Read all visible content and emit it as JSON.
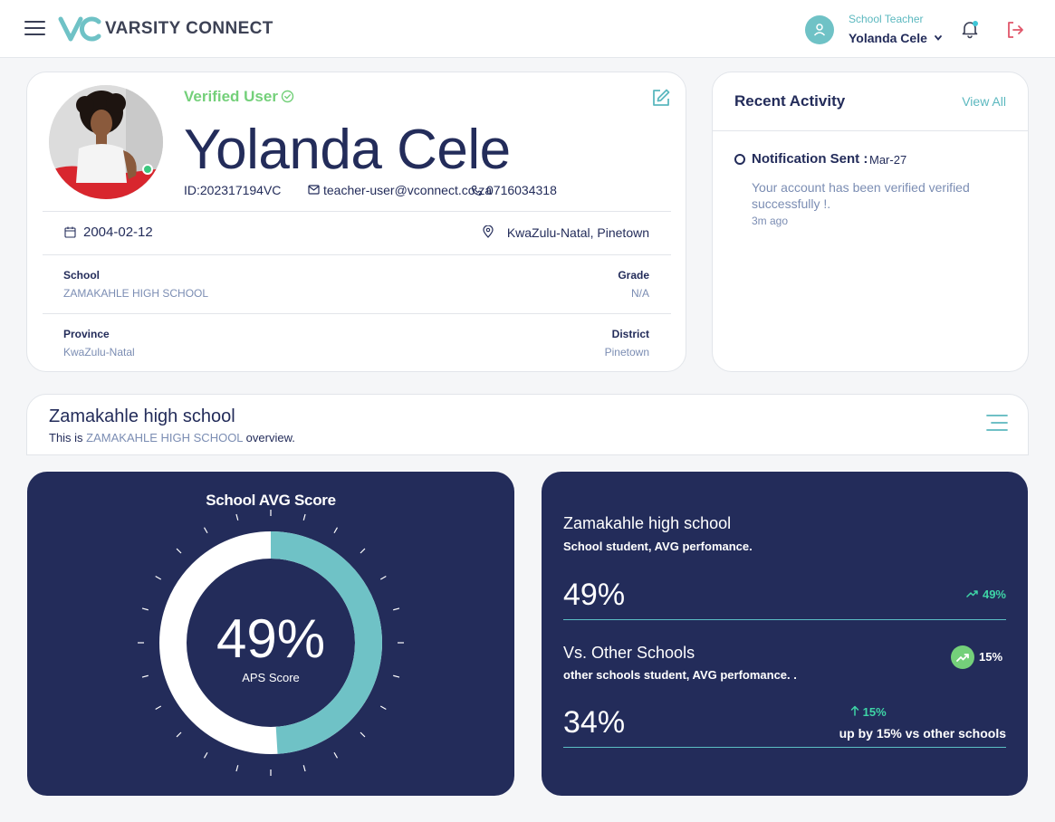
{
  "header": {
    "brand": "VARSITY CONNECT",
    "user_role": "School Teacher",
    "user_name": "Yolanda Cele"
  },
  "profile": {
    "verified_label": "Verified User",
    "name": "Yolanda Cele",
    "id": "ID:202317194VC",
    "email": "teacher-user@vconnect.co.za",
    "phone": "0716034318",
    "dob": "2004-02-12",
    "location": "KwaZulu-Natal, Pinetown",
    "fields": {
      "school_label": "School",
      "school_value": "ZAMAKAHLE HIGH SCHOOL",
      "grade_label": "Grade",
      "grade_value": "N/A",
      "province_label": "Province",
      "province_value": "KwaZulu-Natal",
      "district_label": "District",
      "district_value": "Pinetown"
    }
  },
  "activity": {
    "title": "Recent Activity",
    "view_all": "View All",
    "items": [
      {
        "heading": "Notification Sent :",
        "date": "Mar-27",
        "message": "Your account has been verified verified successfully !.",
        "time": "3m ago"
      }
    ]
  },
  "school": {
    "title": "Zamakahle high school",
    "subtitle_prefix": "This is ",
    "subtitle_highlight": "ZAMAKAHLE HIGH SCHOOL",
    "subtitle_suffix": " overview."
  },
  "gauge": {
    "title": "School AVG Score",
    "value": "49%",
    "percent": 49,
    "label": "APS Score"
  },
  "stats": {
    "title": "Zamakahle high school",
    "subtitle": "School student, AVG perfomance.",
    "value": "49%",
    "trend": "49%",
    "vs_title": "Vs. Other Schools",
    "vs_subtitle": "other schools student, AVG perfomance. .",
    "vs_badge": "15%",
    "vs_value": "34%",
    "vs_up": "15%",
    "vs_up_note": "up by 15% vs other schools"
  },
  "colors": {
    "navy": "#232c5a",
    "teal": "#6fc2c6",
    "green": "#74d07a",
    "mint": "#3ed4a6"
  }
}
